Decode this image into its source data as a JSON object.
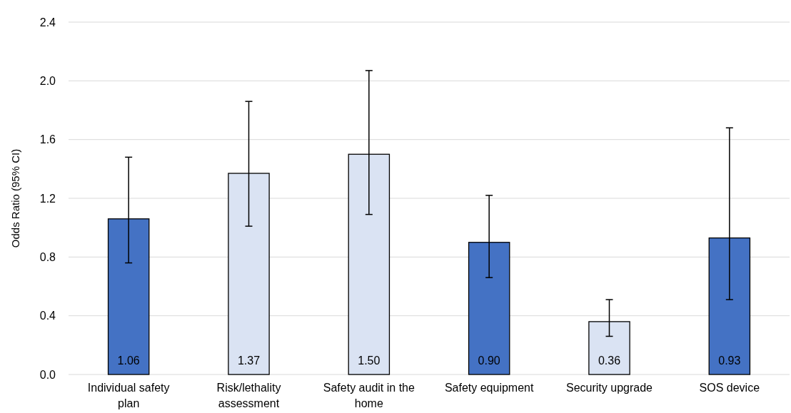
{
  "chart_data": {
    "type": "bar",
    "ylabel": "Odds Ratio (95% CI)",
    "categories": [
      "Individual safety plan",
      "Risk/lethality assessment",
      "Safety audit in the home",
      "Safety equipment",
      "Security upgrade",
      "SOS device"
    ],
    "values": [
      1.06,
      1.37,
      1.5,
      0.9,
      0.36,
      0.93
    ],
    "colors": [
      "#4472c4",
      "#dae3f3",
      "#dae3f3",
      "#4472c4",
      "#dae3f3",
      "#4472c4"
    ],
    "errors": [
      [
        0.76,
        1.48
      ],
      [
        1.01,
        1.86
      ],
      [
        1.09,
        2.07
      ],
      [
        0.66,
        1.22
      ],
      [
        0.26,
        0.51
      ],
      [
        0.51,
        1.68
      ]
    ],
    "value_labels": [
      "1.06",
      "1.37",
      "1.50",
      "0.90",
      "0.36",
      "0.93"
    ],
    "ylim": [
      0,
      2.4
    ],
    "yticks": [
      {
        "value": 0,
        "label": "0.0"
      },
      0.4,
      0.8,
      1.2,
      1.6,
      {
        "value": 2,
        "label": "2.0"
      },
      2.4
    ],
    "grid": "y"
  }
}
